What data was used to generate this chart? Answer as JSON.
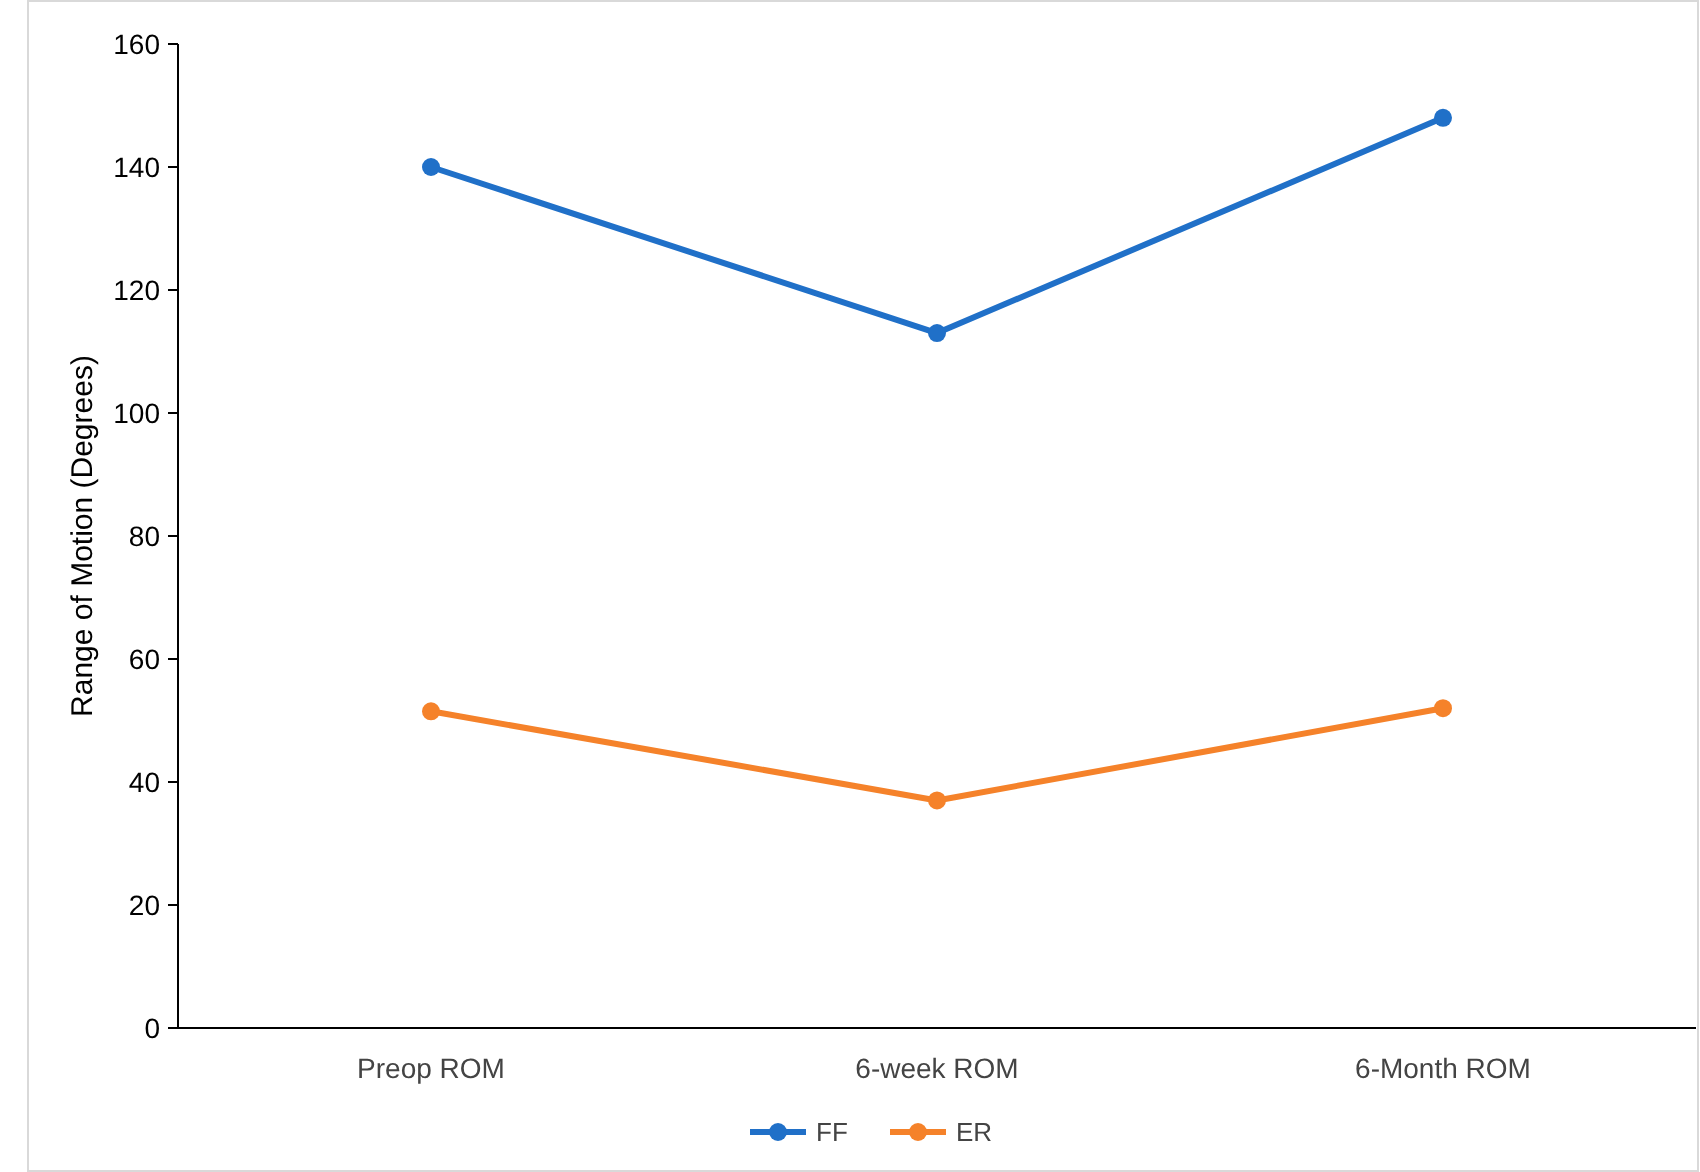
{
  "chart_data": {
    "type": "line",
    "ylabel": "Range of Motion (Degrees)",
    "categories": [
      "Preop ROM",
      "6-week ROM",
      "6-Month ROM"
    ],
    "series": [
      {
        "name": "FF",
        "color": "#2070c8",
        "values": [
          140,
          113,
          148
        ]
      },
      {
        "name": "ER",
        "color": "#f5822a",
        "values": [
          51.5,
          37,
          52
        ]
      }
    ],
    "ylim": [
      0,
      160
    ],
    "yticks": [
      0,
      20,
      40,
      60,
      80,
      100,
      120,
      140,
      160
    ],
    "grid": false,
    "legend": "bottom",
    "marker": "circle",
    "line_style": "solid"
  }
}
